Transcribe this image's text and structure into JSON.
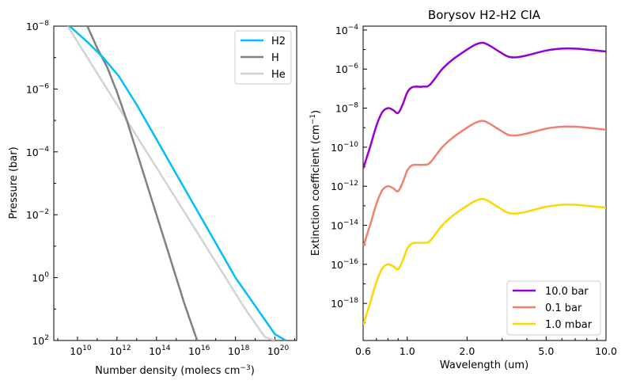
{
  "chart_data": [
    {
      "type": "line",
      "title": "",
      "xlabel": "Number density (molecs cm",
      "xlabel_sup": "−3",
      "xlabel_suffix": ")",
      "ylabel": "Pressure (bar)",
      "xscale": "log",
      "yscale": "log",
      "y_inverted": true,
      "xlim_log10": [
        8.8,
        21.1
      ],
      "ylim_log10": [
        -8,
        2
      ],
      "x_ticks": [
        {
          "b": "10",
          "e": "10"
        },
        {
          "b": "10",
          "e": "12"
        },
        {
          "b": "10",
          "e": "14"
        },
        {
          "b": "10",
          "e": "16"
        },
        {
          "b": "10",
          "e": "18"
        },
        {
          "b": "10",
          "e": "20"
        }
      ],
      "y_ticks": [
        {
          "b": "10",
          "e": "−8"
        },
        {
          "b": "10",
          "e": "−6"
        },
        {
          "b": "10",
          "e": "−4"
        },
        {
          "b": "10",
          "e": "−2"
        },
        {
          "b": "10",
          "e": "0"
        },
        {
          "b": "10",
          "e": "2"
        }
      ],
      "legend_position": "top-right",
      "series": [
        {
          "name": "H2",
          "color": "#00bfff",
          "log10_density": [
            9.6,
            10.5,
            11.3,
            12.1,
            13.0,
            14.0,
            15.0,
            16.0,
            17.0,
            18.0,
            19.0,
            20.0,
            20.55
          ],
          "log10_pressure": [
            -8,
            -7.5,
            -7.0,
            -6.4,
            -5.5,
            -4.4,
            -3.3,
            -2.2,
            -1.1,
            0.0,
            0.9,
            1.8,
            2.0
          ]
        },
        {
          "name": "H",
          "color": "#808080",
          "log10_density": [
            10.5,
            11.0,
            11.5,
            12.0,
            12.5,
            13.0,
            13.6,
            14.2,
            14.8,
            15.4,
            16.06
          ],
          "log10_pressure": [
            -8,
            -7.3,
            -6.7,
            -5.9,
            -5.0,
            -4.0,
            -2.8,
            -1.6,
            -0.4,
            0.8,
            2.0
          ]
        },
        {
          "name": "He",
          "color": "#d3d3d3",
          "log10_density": [
            9.5,
            10.5,
            11.5,
            12.5,
            13.5,
            14.5,
            15.5,
            16.5,
            17.5,
            18.5,
            19.5,
            20.0
          ],
          "log10_pressure": [
            -8,
            -7.0,
            -6.0,
            -5.0,
            -4.0,
            -3.0,
            -2.0,
            -1.0,
            0.0,
            1.0,
            1.9,
            2.0
          ]
        }
      ]
    },
    {
      "type": "line",
      "title": "Borysov H2-H2 CIA",
      "xlabel": "Wavelength (um)",
      "ylabel": "Extinction coefficient (cm",
      "ylabel_sup": "−1",
      "ylabel_suffix": ")",
      "xscale": "log",
      "yscale": "log",
      "xlim": [
        0.6,
        10.0
      ],
      "ylim_log10": [
        -19.9,
        -3.8
      ],
      "x_ticks": [
        "0.6",
        "1.0",
        "2.0",
        "5.0",
        "10.0"
      ],
      "x_tick_values": [
        0.6,
        1.0,
        2.0,
        5.0,
        10.0
      ],
      "y_ticks": [
        {
          "b": "10",
          "e": "−4"
        },
        {
          "b": "10",
          "e": "−6"
        },
        {
          "b": "10",
          "e": "−8"
        },
        {
          "b": "10",
          "e": "−10"
        },
        {
          "b": "10",
          "e": "−12"
        },
        {
          "b": "10",
          "e": "−14"
        },
        {
          "b": "10",
          "e": "−16"
        },
        {
          "b": "10",
          "e": "−18"
        }
      ],
      "legend_position": "bottom-right",
      "base_wavelength_um": [
        0.6,
        0.65,
        0.7,
        0.75,
        0.8,
        0.85,
        0.9,
        0.95,
        1.0,
        1.05,
        1.1,
        1.2,
        1.3,
        1.5,
        1.7,
        2.0,
        2.2,
        2.4,
        2.6,
        2.9,
        3.2,
        3.5,
        4.0,
        5.0,
        6.0,
        7.0,
        8.0,
        10.0
      ],
      "series": [
        {
          "name": "10.0 bar",
          "color": "#9400d3",
          "log10_extinction": [
            -11.1,
            -10.0,
            -8.9,
            -8.2,
            -8.0,
            -8.1,
            -8.25,
            -7.8,
            -7.2,
            -6.95,
            -6.9,
            -6.9,
            -6.8,
            -6.0,
            -5.5,
            -5.0,
            -4.75,
            -4.65,
            -4.8,
            -5.1,
            -5.35,
            -5.4,
            -5.3,
            -5.05,
            -4.95,
            -4.95,
            -5.0,
            -5.1
          ]
        },
        {
          "name": "0.1 bar",
          "color": "#f08070",
          "log10_extinction": [
            -15.1,
            -14.0,
            -12.9,
            -12.2,
            -12.0,
            -12.1,
            -12.25,
            -11.8,
            -11.2,
            -10.95,
            -10.9,
            -10.9,
            -10.8,
            -10.0,
            -9.5,
            -9.0,
            -8.75,
            -8.65,
            -8.8,
            -9.1,
            -9.35,
            -9.4,
            -9.3,
            -9.05,
            -8.95,
            -8.95,
            -9.0,
            -9.1
          ]
        },
        {
          "name": "1.0 mbar",
          "color": "#ffd700",
          "log10_extinction": [
            -19.1,
            -18.0,
            -16.9,
            -16.2,
            -16.0,
            -16.1,
            -16.25,
            -15.8,
            -15.2,
            -14.95,
            -14.9,
            -14.9,
            -14.8,
            -14.0,
            -13.5,
            -13.0,
            -12.75,
            -12.65,
            -12.8,
            -13.1,
            -13.35,
            -13.4,
            -13.3,
            -13.05,
            -12.95,
            -12.95,
            -13.0,
            -13.1
          ]
        }
      ]
    }
  ]
}
